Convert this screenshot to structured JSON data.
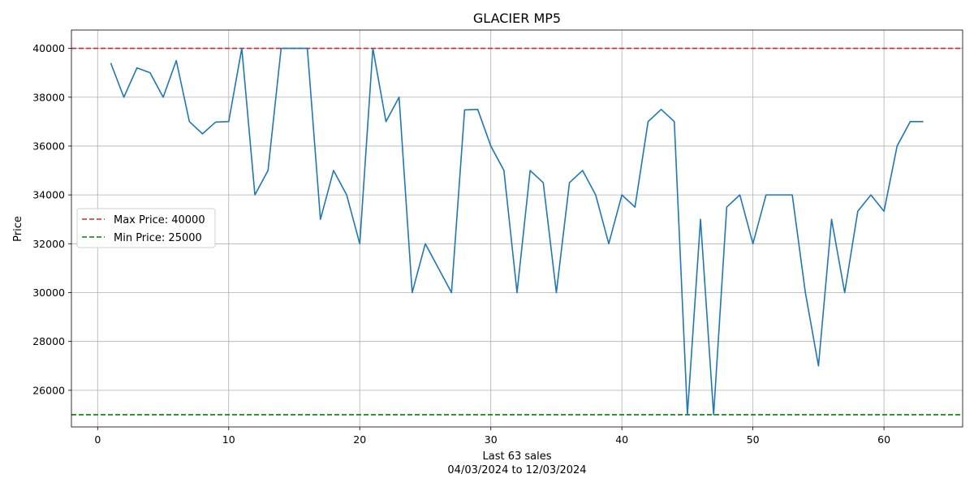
{
  "chart_data": {
    "type": "line",
    "title": "GLACIER MP5",
    "xlabel": "Last 63 sales",
    "xlabel_sub": "04/03/2024 to 12/03/2024",
    "ylabel": "Price",
    "xlim": [
      -2,
      66
    ],
    "ylim": [
      24500,
      40750
    ],
    "x_ticks": [
      0,
      10,
      20,
      30,
      40,
      50,
      60
    ],
    "y_ticks": [
      26000,
      28000,
      30000,
      32000,
      34000,
      36000,
      38000,
      40000
    ],
    "grid": true,
    "legend_position": "center-left",
    "series": [
      {
        "color": "#1f77b4",
        "x": [
          1,
          2,
          3,
          4,
          5,
          6,
          7,
          8,
          9,
          10,
          11,
          12,
          13,
          14,
          15,
          16,
          17,
          18,
          19,
          20,
          21,
          22,
          23,
          24,
          25,
          26,
          27,
          28,
          29,
          30,
          31,
          32,
          33,
          34,
          35,
          36,
          37,
          38,
          39,
          40,
          41,
          42,
          43,
          44,
          45,
          46,
          47,
          48,
          49,
          50,
          51,
          52,
          53,
          54,
          55,
          56,
          57,
          58,
          59,
          60,
          61,
          62,
          63
        ],
        "y": [
          39400,
          38000,
          39200,
          39000,
          38000,
          39500,
          37000,
          36500,
          36980,
          37000,
          40000,
          34000,
          35000,
          40000,
          40000,
          40000,
          33000,
          35000,
          34000,
          32000,
          40000,
          37000,
          38000,
          30000,
          32000,
          31000,
          30000,
          37480,
          37500,
          36000,
          35000,
          30000,
          35000,
          34500,
          30000,
          34500,
          35000,
          34000,
          32000,
          34000,
          33500,
          37000,
          37500,
          37000,
          25000,
          33000,
          25000,
          33500,
          34000,
          32000,
          34000,
          34000,
          34000,
          30000,
          27000,
          33000,
          30000,
          33330,
          34000,
          33330,
          36000,
          37000,
          37000
        ]
      }
    ],
    "reference_lines": [
      {
        "name": "Max Price: 40000",
        "value": 40000,
        "color": "#d62728"
      },
      {
        "name": "Min Price: 25000",
        "value": 25000,
        "color": "#008000"
      }
    ]
  }
}
